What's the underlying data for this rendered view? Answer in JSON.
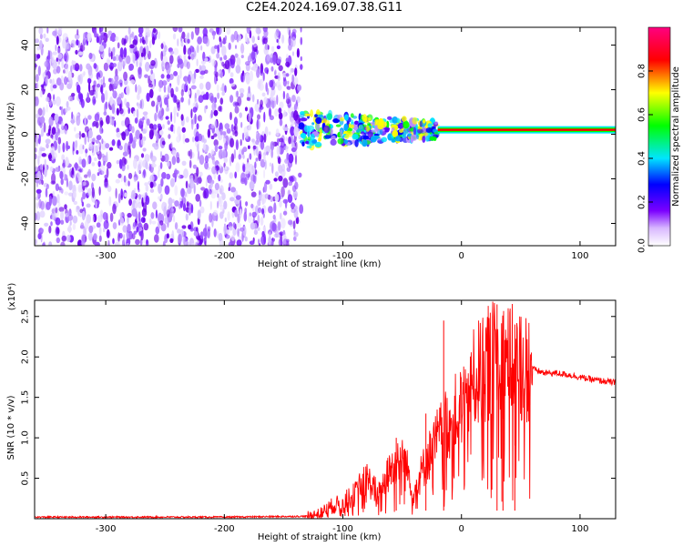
{
  "chart_data": [
    {
      "type": "heatmap",
      "title": "C2E4.2024.169.07.38.G11",
      "xlabel": "Height of straight line (km)",
      "ylabel": "Frequency (Hz)",
      "xlim": [
        -360,
        130
      ],
      "ylim": [
        -50,
        48
      ],
      "xticks": [
        -300,
        -200,
        -100,
        0,
        100
      ],
      "yticks": [
        -40,
        -20,
        0,
        20,
        40
      ],
      "colorbar": {
        "label": "Normalized spectral amplitude",
        "range": [
          0.0,
          1.0
        ],
        "ticks": [
          0.0,
          0.2,
          0.4,
          0.6,
          0.8
        ],
        "colors": [
          "#ffffff",
          "#7b00ff",
          "#0000ff",
          "#00e5ff",
          "#00ff00",
          "#ffff00",
          "#ff0000",
          "#ff0080"
        ]
      },
      "regions": [
        {
          "name": "noise",
          "x": [
            -360,
            -135
          ],
          "y": [
            -50,
            48
          ],
          "amplitude": [
            0.0,
            0.15
          ]
        },
        {
          "name": "transition",
          "x": [
            -135,
            -20
          ],
          "y": [
            -12,
            12
          ],
          "amplitude": [
            0.1,
            0.8
          ]
        },
        {
          "name": "signal-line",
          "x": [
            -20,
            130
          ],
          "frequency": 2,
          "amplitude": [
            0.8,
            1.0
          ]
        }
      ]
    },
    {
      "type": "line",
      "xlabel": "Height of straight line (km)",
      "ylabel": "SNR (10 * v/v)",
      "scale_label": "(x10⁴)",
      "xlim": [
        -360,
        130
      ],
      "ylim": [
        0,
        2.7
      ],
      "xticks": [
        -300,
        -200,
        -100,
        0,
        100
      ],
      "yticks": [
        0.5,
        1.0,
        1.5,
        2.0,
        2.5
      ],
      "ytick_labels": [
        "0.5",
        "1.0",
        "1.5",
        "2.0",
        "2.5"
      ],
      "color": "#ff0000",
      "series": [
        {
          "x": [
            -360,
            -300,
            -200,
            -130,
            -120,
            -110,
            -100,
            -90,
            -80,
            -70,
            -60,
            -50,
            -40,
            -30,
            -20,
            -10,
            0,
            10,
            20,
            30,
            40,
            50,
            60,
            70,
            80,
            90,
            100,
            110,
            120,
            130
          ],
          "values": [
            0.02,
            0.02,
            0.02,
            0.03,
            0.06,
            0.15,
            0.2,
            0.3,
            0.5,
            0.3,
            0.6,
            0.8,
            0.35,
            0.7,
            1.0,
            1.2,
            1.4,
            1.7,
            1.9,
            2.0,
            1.95,
            1.9,
            1.85,
            1.8,
            1.8,
            1.78,
            1.75,
            1.72,
            1.7,
            1.68
          ],
          "spikes": [
            {
              "x": -15,
              "y": 2.45
            },
            {
              "x": 30,
              "y": 2.65
            },
            {
              "x": 35,
              "y": 2.45
            },
            {
              "x": 45,
              "y": 2.4
            },
            {
              "x": -30,
              "y": 1.3
            },
            {
              "x": -55,
              "y": 1.0
            }
          ]
        }
      ]
    }
  ]
}
